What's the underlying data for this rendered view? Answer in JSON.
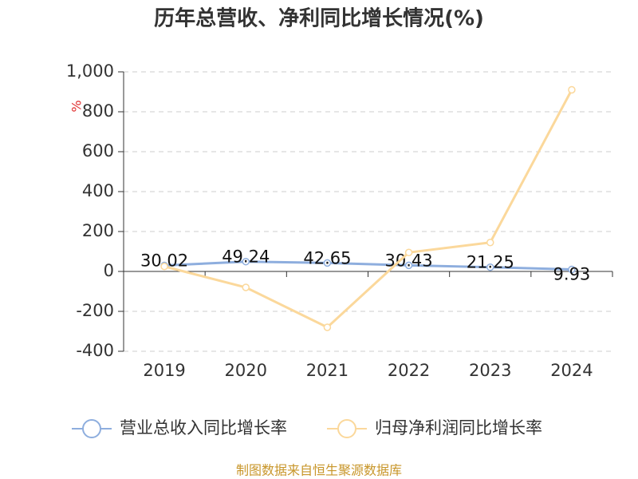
{
  "chart_data": {
    "type": "line",
    "title": "历年总营收、净利同比增长情况(%)",
    "y_unit": "%",
    "categories": [
      "2019",
      "2020",
      "2021",
      "2022",
      "2023",
      "2024"
    ],
    "series": [
      {
        "name": "营业总收入同比增长率",
        "color": "#8eaede",
        "values": [
          30.02,
          49.24,
          42.65,
          30.43,
          21.25,
          9.93
        ],
        "show_labels": true
      },
      {
        "name": "归母净利润同比增长率",
        "color": "#fbd89b",
        "values": [
          25,
          -80,
          -280,
          95,
          145,
          910
        ],
        "show_labels": false
      }
    ],
    "ylim": [
      -400,
      1000
    ],
    "yticks": [
      -400,
      -200,
      0,
      200,
      400,
      600,
      800,
      {
        "value": 1000,
        "label": "1,000"
      }
    ],
    "grid": true,
    "legend": "bottom",
    "source": "制图数据来自恒生聚源数据库"
  }
}
